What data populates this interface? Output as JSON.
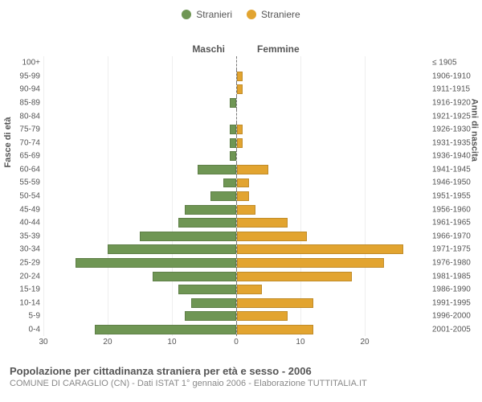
{
  "legend": {
    "male": {
      "label": "Stranieri",
      "color": "#6f9654"
    },
    "female": {
      "label": "Straniere",
      "color": "#e2a430"
    }
  },
  "chart": {
    "type": "population-pyramid",
    "left_title": "Maschi",
    "right_title": "Femmine",
    "left_axis_label": "Fasce di età",
    "right_axis_label": "Anni di nascita",
    "background_color": "#ffffff",
    "grid_color": "#eeeeee",
    "divider_dash_color": "#777777",
    "bar_border_opacity": 0.15,
    "bar_height_ratio": 0.72,
    "max_value": 30,
    "x_ticks": [
      30,
      20,
      10,
      0,
      10,
      20
    ],
    "rows": [
      {
        "age": "100+",
        "birth": "≤ 1905",
        "male": 0,
        "female": 0
      },
      {
        "age": "95-99",
        "birth": "1906-1910",
        "male": 0,
        "female": 1
      },
      {
        "age": "90-94",
        "birth": "1911-1915",
        "male": 0,
        "female": 1
      },
      {
        "age": "85-89",
        "birth": "1916-1920",
        "male": 1,
        "female": 0
      },
      {
        "age": "80-84",
        "birth": "1921-1925",
        "male": 0,
        "female": 0
      },
      {
        "age": "75-79",
        "birth": "1926-1930",
        "male": 1,
        "female": 1
      },
      {
        "age": "70-74",
        "birth": "1931-1935",
        "male": 1,
        "female": 1
      },
      {
        "age": "65-69",
        "birth": "1936-1940",
        "male": 1,
        "female": 0
      },
      {
        "age": "60-64",
        "birth": "1941-1945",
        "male": 6,
        "female": 5
      },
      {
        "age": "55-59",
        "birth": "1946-1950",
        "male": 2,
        "female": 2
      },
      {
        "age": "50-54",
        "birth": "1951-1955",
        "male": 4,
        "female": 2
      },
      {
        "age": "45-49",
        "birth": "1956-1960",
        "male": 8,
        "female": 3
      },
      {
        "age": "40-44",
        "birth": "1961-1965",
        "male": 9,
        "female": 8
      },
      {
        "age": "35-39",
        "birth": "1966-1970",
        "male": 15,
        "female": 11
      },
      {
        "age": "30-34",
        "birth": "1971-1975",
        "male": 20,
        "female": 26
      },
      {
        "age": "25-29",
        "birth": "1976-1980",
        "male": 25,
        "female": 23
      },
      {
        "age": "20-24",
        "birth": "1981-1985",
        "male": 13,
        "female": 18
      },
      {
        "age": "15-19",
        "birth": "1986-1990",
        "male": 9,
        "female": 4
      },
      {
        "age": "10-14",
        "birth": "1991-1995",
        "male": 7,
        "female": 12
      },
      {
        "age": "5-9",
        "birth": "1996-2000",
        "male": 8,
        "female": 8
      },
      {
        "age": "0-4",
        "birth": "2001-2005",
        "male": 22,
        "female": 12
      }
    ]
  },
  "footer": {
    "title": "Popolazione per cittadinanza straniera per età e sesso - 2006",
    "subtitle": "COMUNE DI CARAGLIO (CN) - Dati ISTAT 1° gennaio 2006 - Elaborazione TUTTITALIA.IT"
  }
}
